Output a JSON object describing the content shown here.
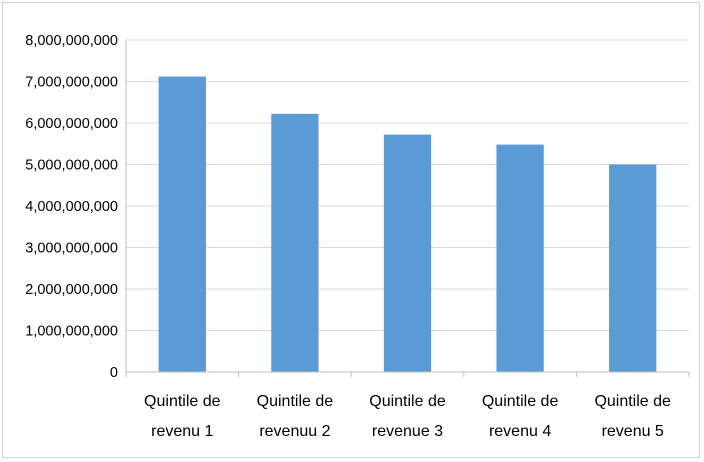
{
  "chart_data": {
    "type": "bar",
    "title": "",
    "xlabel": "",
    "ylabel": "",
    "categories": [
      [
        "Quintile de",
        "revenu 1"
      ],
      [
        "Quintile de",
        "revenuu 2"
      ],
      [
        "Quintile de",
        "revenue 3"
      ],
      [
        "Quintile de",
        "revenu 4"
      ],
      [
        "Quintile de",
        "revenu 5"
      ]
    ],
    "values": [
      7120000000,
      6220000000,
      5720000000,
      5480000000,
      5000000000
    ],
    "ylim": [
      0,
      8000000000
    ],
    "yticks": [
      0,
      1000000000,
      2000000000,
      3000000000,
      4000000000,
      5000000000,
      6000000000,
      7000000000,
      8000000000
    ],
    "ytick_labels": [
      "0",
      "1,000,000,000",
      "2,000,000,000",
      "3,000,000,000",
      "4,000,000,000",
      "5,000,000,000",
      "6,000,000,000",
      "7,000,000,000",
      "8,000,000,000"
    ],
    "grid": true,
    "legend": "none",
    "bar_color": "#5b9bd5"
  }
}
